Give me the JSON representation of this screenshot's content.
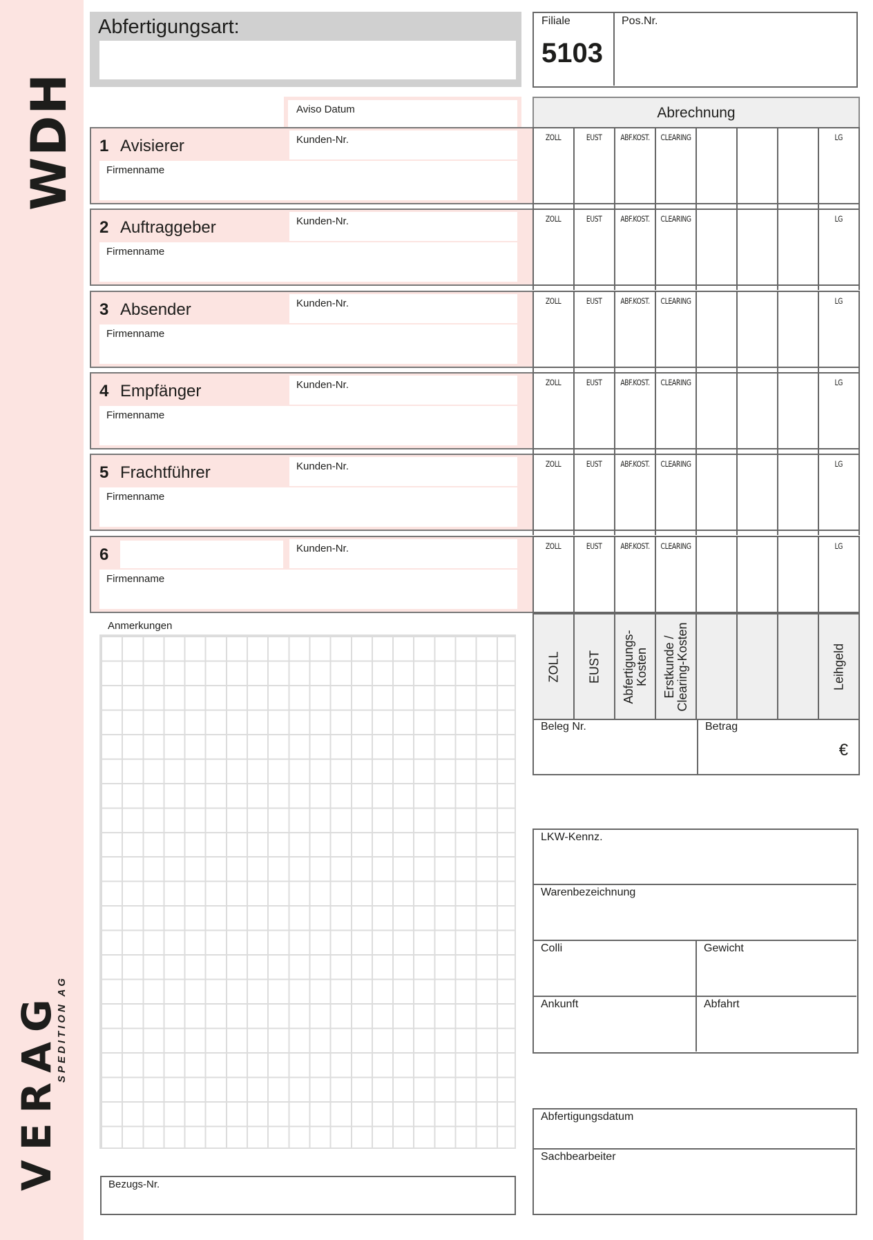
{
  "branding": {
    "form_code": "WDH",
    "company": "VERAG",
    "company_sub": "SPEDITION AG"
  },
  "colors": {
    "accent_pink": "#fce4e1",
    "header_gray": "#d0d0d0",
    "border": "#666666"
  },
  "header": {
    "clearance_type_label": "Abfertigungsart:",
    "branch_label": "Filiale",
    "branch_value": "5103",
    "position_label": "Pos.Nr.",
    "aviso_date_label": "Aviso Datum"
  },
  "billing": {
    "title": "Abrechnung",
    "row_columns": [
      "ZOLL",
      "EUST",
      "ABF.KOST.",
      "CLEARING",
      "",
      "",
      "",
      "LG"
    ],
    "column_headers": [
      "ZOLL",
      "EUST",
      "Abfertigungs-\nKosten",
      "Erstkunde /\nClearing-Kosten",
      "",
      "",
      "",
      "Leihgeld"
    ],
    "receipt_label": "Beleg Nr.",
    "amount_label": "Betrag",
    "currency_symbol": "€"
  },
  "parties": [
    {
      "number": "1",
      "title": "Avisierer",
      "customer_no_label": "Kunden-Nr.",
      "company_label": "Firmenname"
    },
    {
      "number": "2",
      "title": "Auftraggeber",
      "customer_no_label": "Kunden-Nr.",
      "company_label": "Firmenname"
    },
    {
      "number": "3",
      "title": "Absender",
      "customer_no_label": "Kunden-Nr.",
      "company_label": "Firmenname"
    },
    {
      "number": "4",
      "title": "Empfänger",
      "customer_no_label": "Kunden-Nr.",
      "company_label": "Firmenname"
    },
    {
      "number": "5",
      "title": "Frachtführer",
      "customer_no_label": "Kunden-Nr.",
      "company_label": "Firmenname"
    },
    {
      "number": "6",
      "title": "",
      "customer_no_label": "Kunden-Nr.",
      "company_label": "Firmenname"
    }
  ],
  "notes": {
    "label": "Anmerkungen",
    "reference_label": "Bezugs-Nr."
  },
  "shipment": {
    "truck_plate_label": "LKW-Kennz.",
    "goods_label": "Warenbezeichnung",
    "packages_label": "Colli",
    "weight_label": "Gewicht",
    "arrival_label": "Ankunft",
    "departure_label": "Abfahrt"
  },
  "processing": {
    "date_label": "Abfertigungsdatum",
    "clerk_label": "Sachbearbeiter"
  }
}
